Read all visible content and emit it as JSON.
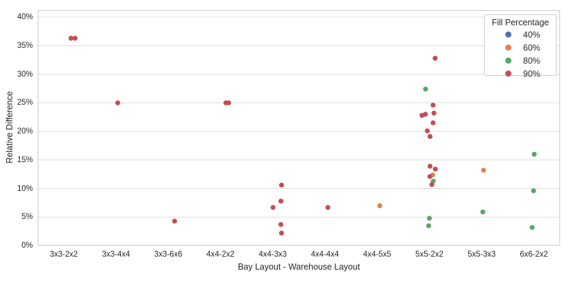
{
  "chart_data": {
    "type": "scatter",
    "title": "",
    "xlabel": "Bay Layout - Warehouse Layout",
    "ylabel": "Relative Difference",
    "categories": [
      "3x3-2x2",
      "3x3-4x4",
      "3x3-6x6",
      "4x4-2x2",
      "4x4-3x3",
      "4x4-4x4",
      "4x4-5x5",
      "5x5-2x2",
      "5x5-3x3",
      "6x6-2x2"
    ],
    "y_ticks": [
      {
        "value": 0,
        "label": "0%"
      },
      {
        "value": 5,
        "label": "5%"
      },
      {
        "value": 10,
        "label": "10%"
      },
      {
        "value": 15,
        "label": "15%"
      },
      {
        "value": 20,
        "label": "20%"
      },
      {
        "value": 25,
        "label": "25%"
      },
      {
        "value": 30,
        "label": "30%"
      },
      {
        "value": 35,
        "label": "35%"
      },
      {
        "value": 40,
        "label": "40%"
      }
    ],
    "ylim": [
      0,
      41.2
    ],
    "grid": "horizontal",
    "legend": {
      "title": "Fill Percentage",
      "position": "upper right",
      "entries": [
        {
          "label": "40%",
          "color": "#4C72B0"
        },
        {
          "label": "60%",
          "color": "#DD8452"
        },
        {
          "label": "80%",
          "color": "#55A868"
        },
        {
          "label": "90%",
          "color": "#C44E52"
        }
      ]
    },
    "series": [
      {
        "name": "40%",
        "color": "#4C72B0",
        "points": []
      },
      {
        "name": "60%",
        "color": "#DD8452",
        "points": [
          {
            "c": 6,
            "v": 7.0,
            "j": 3.7
          },
          {
            "c": 7,
            "v": 12.4,
            "j": 4.8
          },
          {
            "c": 8,
            "v": 13.2,
            "j": 2.6
          }
        ]
      },
      {
        "name": "80%",
        "color": "#55A868",
        "points": [
          {
            "c": 7,
            "v": 27.4,
            "j": -5.8
          },
          {
            "c": 7,
            "v": 11.3,
            "j": 5.5
          },
          {
            "c": 7,
            "v": 4.8,
            "j": -0.2
          },
          {
            "c": 7,
            "v": 3.5,
            "j": -1.2
          },
          {
            "c": 8,
            "v": 5.9,
            "j": 1.6
          },
          {
            "c": 9,
            "v": 16.0,
            "j": 0.4
          },
          {
            "c": 9,
            "v": 9.6,
            "j": -0.6
          },
          {
            "c": 9,
            "v": 3.2,
            "j": -2.6
          }
        ]
      },
      {
        "name": "90%",
        "color": "#C44E52",
        "points": [
          {
            "c": 0,
            "v": 36.3,
            "j": 10.4
          },
          {
            "c": 0,
            "v": 36.3,
            "j": 16.4
          },
          {
            "c": 1,
            "v": 25.0,
            "j": 2.4
          },
          {
            "c": 2,
            "v": 4.3,
            "j": 9.2
          },
          {
            "c": 3,
            "v": 25.0,
            "j": 7.8
          },
          {
            "c": 3,
            "v": 25.0,
            "j": 11.8
          },
          {
            "c": 4,
            "v": 10.6,
            "j": 12.8
          },
          {
            "c": 4,
            "v": 7.8,
            "j": 11.8
          },
          {
            "c": 4,
            "v": 6.7,
            "j": 0.4
          },
          {
            "c": 4,
            "v": 3.7,
            "j": 11.8
          },
          {
            "c": 4,
            "v": 2.2,
            "j": 12.8
          },
          {
            "c": 5,
            "v": 6.7,
            "j": 4.2
          },
          {
            "c": 7,
            "v": 32.8,
            "j": 8.2
          },
          {
            "c": 7,
            "v": 24.6,
            "j": 5.2
          },
          {
            "c": 7,
            "v": 23.2,
            "j": 6.5
          },
          {
            "c": 7,
            "v": 23.0,
            "j": -6.0
          },
          {
            "c": 7,
            "v": 22.8,
            "j": -11.0
          },
          {
            "c": 7,
            "v": 21.5,
            "j": 5.2
          },
          {
            "c": 7,
            "v": 20.1,
            "j": -3.2
          },
          {
            "c": 7,
            "v": 19.1,
            "j": 0.8
          },
          {
            "c": 7,
            "v": 13.9,
            "j": 0.8
          },
          {
            "c": 7,
            "v": 13.4,
            "j": 8.5
          },
          {
            "c": 7,
            "v": 12.1,
            "j": 0.5
          },
          {
            "c": 7,
            "v": 10.7,
            "j": 3.5
          }
        ]
      }
    ],
    "style": {
      "grid_color": "#dcdcdc",
      "border_color": "#cbcbcb",
      "background": "#ffffff",
      "dot_radius": 3.6
    }
  }
}
